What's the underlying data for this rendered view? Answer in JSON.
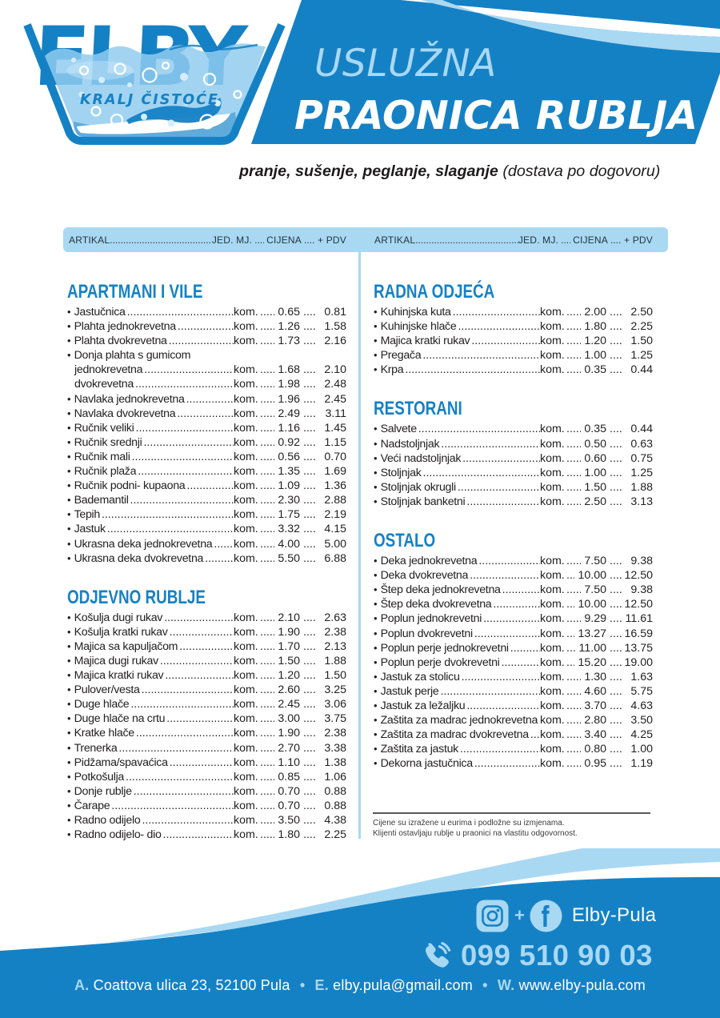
{
  "colors": {
    "brand_blue": "#1581c5",
    "light_blue": "#a9d8f3",
    "text_dark": "#232021"
  },
  "logo": {
    "brand": "ELBY",
    "tagline": "KRALJ ČISTOĆE"
  },
  "banner": {
    "line1": "USLUŽNA",
    "line2": "PRAONICA RUBLJA"
  },
  "subtitle": {
    "services": "pranje, sušenje, peglanje, slaganje",
    "note": " (dostava po dogovoru)"
  },
  "table_header": {
    "article": "ARTIKAL",
    "unit": "JED. MJ.",
    "price": "CIJENA",
    "vat": "+ PDV"
  },
  "price_list": {
    "bullet": "•",
    "left": [
      {
        "title": "APARTMANI I VILE",
        "items": [
          {
            "name": "Jastučnica",
            "unit": "kom.",
            "price": "0.65",
            "vat": "0.81"
          },
          {
            "name": "Plahta jednokrevetna",
            "unit": "kom.",
            "price": "1.26",
            "vat": "1.58"
          },
          {
            "name": "Plahta dvokrevetna",
            "unit": "kom.",
            "price": "1.73",
            "vat": "2.16"
          },
          {
            "name": "Donja plahta s gumicom",
            "label_only": true
          },
          {
            "name": "jednokrevetna",
            "indent": true,
            "unit": "kom.",
            "price": "1.68",
            "vat": "2.10"
          },
          {
            "name": "dvokrevetna",
            "indent": true,
            "unit": "kom.",
            "price": "1.98",
            "vat": "2.48"
          },
          {
            "name": "Navlaka jednokrevetna",
            "unit": "kom.",
            "price": "1.96",
            "vat": "2.45"
          },
          {
            "name": "Navlaka dvokrevetna",
            "unit": "kom.",
            "price": "2.49",
            "vat": "3.11"
          },
          {
            "name": "Ručnik veliki",
            "unit": "kom.",
            "price": "1.16",
            "vat": "1.45"
          },
          {
            "name": "Ručnik srednji",
            "unit": "kom.",
            "price": "0.92",
            "vat": "1.15"
          },
          {
            "name": "Ručnik mali",
            "unit": "kom.",
            "price": "0.56",
            "vat": "0.70"
          },
          {
            "name": "Ručnik plaža",
            "unit": "kom.",
            "price": "1.35",
            "vat": "1.69"
          },
          {
            "name": "Ručnik podni- kupaona",
            "unit": "kom.",
            "price": "1.09",
            "vat": "1.36"
          },
          {
            "name": "Bademantil",
            "unit": "kom.",
            "price": "2.30",
            "vat": "2.88"
          },
          {
            "name": "Tepih",
            "unit": "kom.",
            "price": "1.75",
            "vat": "2.19"
          },
          {
            "name": "Jastuk",
            "unit": "kom.",
            "price": "3.32",
            "vat": "4.15"
          },
          {
            "name": "Ukrasna deka jednokrevetna",
            "unit": "kom.",
            "price": "4.00",
            "vat": "5.00"
          },
          {
            "name": "Ukrasna deka dvokrevetna",
            "unit": "kom.",
            "price": "5.50",
            "vat": "6.88"
          }
        ]
      },
      {
        "title": "ODJEVNO RUBLJE",
        "items": [
          {
            "name": "Košulja dugi rukav",
            "unit": "kom.",
            "price": "2.10",
            "vat": "2.63"
          },
          {
            "name": "Košulja kratki rukav",
            "unit": "kom.",
            "price": "1.90",
            "vat": "2.38"
          },
          {
            "name": "Majica sa kapuljačom",
            "unit": "kom.",
            "price": "1.70",
            "vat": "2.13"
          },
          {
            "name": "Majica dugi rukav",
            "unit": "kom.",
            "price": "1.50",
            "vat": "1.88"
          },
          {
            "name": "Majica kratki rukav",
            "unit": "kom.",
            "price": "1.20",
            "vat": "1.50"
          },
          {
            "name": "Pulover/vesta",
            "unit": "kom.",
            "price": "2.60",
            "vat": "3.25"
          },
          {
            "name": "Duge hlače",
            "unit": "kom.",
            "price": "2.45",
            "vat": "3.06"
          },
          {
            "name": "Duge hlače na crtu",
            "unit": "kom.",
            "price": "3.00",
            "vat": "3.75"
          },
          {
            "name": "Kratke hlače",
            "unit": "kom.",
            "price": "1.90",
            "vat": "2.38"
          },
          {
            "name": "Trenerka",
            "unit": "kom.",
            "price": "2.70",
            "vat": "3.38"
          },
          {
            "name": "Pidžama/spavaćica",
            "unit": "kom.",
            "price": "1.10",
            "vat": "1.38"
          },
          {
            "name": "Potkošulja",
            "unit": "kom.",
            "price": "0.85",
            "vat": "1.06"
          },
          {
            "name": "Donje rublje",
            "unit": "kom.",
            "price": "0.70",
            "vat": "0.88"
          },
          {
            "name": "Čarape",
            "unit": "kom.",
            "price": "0.70",
            "vat": "0.88"
          },
          {
            "name": "Radno odijelo",
            "unit": "kom.",
            "price": "3.50",
            "vat": "4.38"
          },
          {
            "name": "Radno odijelo- dio",
            "unit": "kom.",
            "price": "1.80",
            "vat": "2.25"
          }
        ]
      }
    ],
    "right": [
      {
        "title": "RADNA ODJEĆA",
        "items": [
          {
            "name": "Kuhinjska kuta",
            "unit": "kom.",
            "price": "2.00",
            "vat": "2.50"
          },
          {
            "name": "Kuhinjske hlače",
            "unit": "kom.",
            "price": "1.80",
            "vat": "2.25"
          },
          {
            "name": "Majica kratki rukav",
            "unit": "kom.",
            "price": "1.20",
            "vat": "1.50"
          },
          {
            "name": "Pregača",
            "unit": "kom.",
            "price": "1.00",
            "vat": "1.25"
          },
          {
            "name": "Krpa",
            "unit": "kom.",
            "price": "0.35",
            "vat": "0.44"
          }
        ]
      },
      {
        "title": "RESTORANI",
        "items": [
          {
            "name": "Salvete",
            "unit": "kom.",
            "price": "0.35",
            "vat": "0.44"
          },
          {
            "name": "Nadstoljnjak",
            "unit": "kom.",
            "price": "0.50",
            "vat": "0.63"
          },
          {
            "name": "Veći nadstoljnjak",
            "unit": "kom.",
            "price": "0.60",
            "vat": "0.75"
          },
          {
            "name": "Stoljnjak",
            "unit": "kom.",
            "price": "1.00",
            "vat": "1.25"
          },
          {
            "name": "Stoljnjak okrugli",
            "unit": "kom.",
            "price": "1.50",
            "vat": "1.88"
          },
          {
            "name": "Stoljnjak banketni",
            "unit": "kom.",
            "price": "2.50",
            "vat": "3.13"
          }
        ]
      },
      {
        "title": "OSTALO",
        "items": [
          {
            "name": "Deka jednokrevetna",
            "unit": "kom.",
            "price": "7.50",
            "vat": "9.38"
          },
          {
            "name": "Deka dvokrevetna",
            "unit": "kom.",
            "price": "10.00",
            "vat": "12.50"
          },
          {
            "name": "Štep deka jednokrevetna",
            "unit": "kom.",
            "price": "7.50",
            "vat": "9.38"
          },
          {
            "name": "Štep deka dvokrevetna",
            "unit": "kom.",
            "price": "10.00",
            "vat": "12.50"
          },
          {
            "name": "Poplun jednokrevetni",
            "unit": "kom.",
            "price": "9.29",
            "vat": "11.61"
          },
          {
            "name": "Poplun dvokrevetni",
            "unit": "kom.",
            "price": "13.27",
            "vat": "16.59"
          },
          {
            "name": "Poplun perje jednokrevetni",
            "unit": "kom.",
            "price": "11.00",
            "vat": "13.75"
          },
          {
            "name": "Poplun perje dvokrevetni",
            "unit": "kom.",
            "price": "15.20",
            "vat": "19.00"
          },
          {
            "name": "Jastuk za stolicu",
            "unit": "kom.",
            "price": "1.30",
            "vat": "1.63"
          },
          {
            "name": "Jastuk perje",
            "unit": "kom.",
            "price": "4.60",
            "vat": "5.75"
          },
          {
            "name": "Jastuk za ležaljku",
            "unit": "kom.",
            "price": "3.70",
            "vat": "4.63"
          },
          {
            "name": "Zaštita za madrac jednokrevetna",
            "unit": "kom.",
            "price": "2.80",
            "vat": "3.50"
          },
          {
            "name": "Zaštita za madrac dvokrevetna",
            "unit": "kom.",
            "price": "3.40",
            "vat": "4.25"
          },
          {
            "name": "Zaštita za jastuk",
            "unit": "kom.",
            "price": "0.80",
            "vat": "1.00"
          },
          {
            "name": "Dekorna jastučnica",
            "unit": "kom.",
            "price": "0.95",
            "vat": "1.19"
          }
        ]
      }
    ]
  },
  "notes": [
    "Cijene su izražene u eurima i podložne su izmjenama.",
    "Klijenti ostavljaju rublje u praonici na vlastitu odgovornost."
  ],
  "footer": {
    "social_plus": "+",
    "social_label": "Elby-Pula",
    "phone": "099 510 90 03",
    "address_label": "A.",
    "address": "Coattova ulica  23, 52100 Pula",
    "separator": "•",
    "email_label": "E.",
    "email": "elby.pula@gmail.com",
    "web_label": "W.",
    "web": "www.elby-pula.com"
  }
}
